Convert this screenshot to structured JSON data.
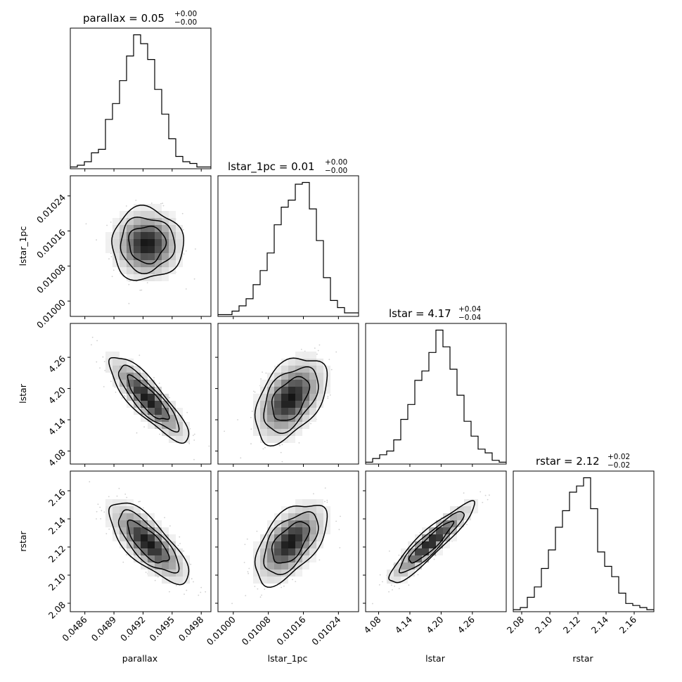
{
  "chart_data": {
    "type": "corner",
    "parameters": [
      "parallax",
      "lstar_1pc",
      "lstar",
      "rstar"
    ],
    "axis_labels": [
      "parallax",
      "lstar_1pc",
      "lstar",
      "rstar"
    ],
    "titles": [
      {
        "text": "parallax = 0.05",
        "sup": "+0.00",
        "sub": "−0.00"
      },
      {
        "text": "lstar_1pc = 0.01",
        "sup": "+0.00",
        "sub": "−0.00"
      },
      {
        "text": "lstar = 4.17",
        "sup": "+0.04",
        "sub": "−0.04"
      },
      {
        "text": "rstar = 2.12",
        "sup": "+0.02",
        "sub": "−0.02"
      }
    ],
    "ranges": [
      [
        0.04845,
        0.0499
      ],
      [
        0.009965,
        0.010286
      ],
      [
        4.055,
        4.325
      ],
      [
        2.074,
        2.174
      ]
    ],
    "ticks": [
      {
        "values": [
          0.0486,
          0.0489,
          0.0492,
          0.0495,
          0.0498
        ],
        "labels": [
          "0.0486",
          "0.0489",
          "0.0492",
          "0.0495",
          "0.0498"
        ]
      },
      {
        "values": [
          0.01,
          0.01008,
          0.01016,
          0.01024
        ],
        "labels": [
          "0.01000",
          "0.01008",
          "0.01016",
          "0.01024"
        ]
      },
      {
        "values": [
          4.08,
          4.14,
          4.2,
          4.26
        ],
        "labels": [
          "4.08",
          "4.14",
          "4.20",
          "4.26"
        ]
      },
      {
        "values": [
          2.08,
          2.1,
          2.12,
          2.14,
          2.16
        ],
        "labels": [
          "2.08",
          "2.10",
          "2.12",
          "2.14",
          "2.16"
        ]
      }
    ],
    "histograms": [
      [
        1,
        2,
        4,
        9,
        11,
        28,
        37,
        50,
        64,
        76,
        71,
        62,
        45,
        31,
        17,
        7,
        4,
        3,
        1,
        1
      ],
      [
        1,
        1,
        3,
        6,
        10,
        18,
        26,
        36,
        52,
        62,
        66,
        75,
        76,
        61,
        43,
        22,
        9,
        5,
        2,
        2
      ],
      [
        1,
        3,
        5,
        7,
        13,
        24,
        32,
        45,
        50,
        60,
        72,
        63,
        51,
        37,
        23,
        15,
        8,
        6,
        2,
        1
      ],
      [
        1,
        2,
        7,
        12,
        21,
        30,
        41,
        49,
        58,
        61,
        65,
        50,
        29,
        22,
        17,
        9,
        4,
        3,
        2,
        1
      ]
    ],
    "densities": [
      {
        "x": 1,
        "y": 0,
        "cx": 0.04924,
        "cy": 0.01013,
        "sx": 0.00018,
        "sy": 4e-05,
        "rho": 0.0
      },
      {
        "x": 2,
        "y": 0,
        "cx": 0.04925,
        "cy": 4.18,
        "sx": 0.0002,
        "sy": 0.04,
        "rho": -0.85
      },
      {
        "x": 2,
        "y": 1,
        "cx": 0.01013,
        "cy": 4.18,
        "sx": 4e-05,
        "sy": 0.04,
        "rho": 0.45
      },
      {
        "x": 3,
        "y": 0,
        "cx": 0.04925,
        "cy": 2.123,
        "sx": 0.0002,
        "sy": 0.014,
        "rho": -0.75
      },
      {
        "x": 3,
        "y": 1,
        "cx": 0.01013,
        "cy": 2.123,
        "sx": 4e-05,
        "sy": 0.014,
        "rho": 0.55
      },
      {
        "x": 3,
        "y": 2,
        "cx": 4.18,
        "cy": 2.123,
        "sx": 0.04,
        "sy": 0.014,
        "rho": 0.92
      }
    ],
    "grid": false,
    "legend": "none"
  }
}
